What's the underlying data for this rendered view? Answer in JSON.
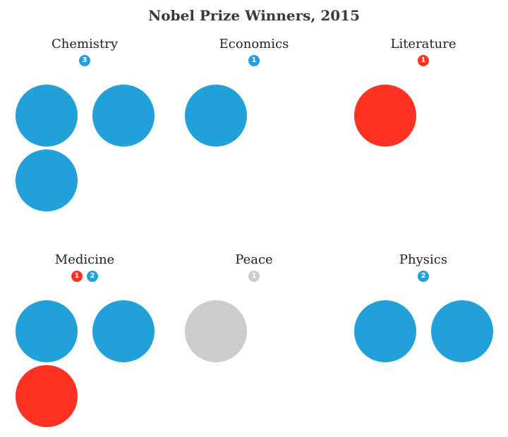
{
  "chart_data": {
    "type": "other",
    "title": "Nobel Prize Winners, 2015",
    "colors": {
      "blue": "#21a0d9",
      "red": "#ff3123",
      "gray": "#cccccc"
    },
    "categories": [
      {
        "name": "Chemistry",
        "badges": [
          {
            "count": "3",
            "color": "blue"
          }
        ],
        "winners": [
          "blue",
          "blue",
          "blue"
        ]
      },
      {
        "name": "Economics",
        "badges": [
          {
            "count": "1",
            "color": "blue"
          }
        ],
        "winners": [
          "blue"
        ]
      },
      {
        "name": "Literature",
        "badges": [
          {
            "count": "1",
            "color": "red"
          }
        ],
        "winners": [
          "red"
        ]
      },
      {
        "name": "Medicine",
        "badges": [
          {
            "count": "1",
            "color": "red"
          },
          {
            "count": "2",
            "color": "blue"
          }
        ],
        "winners": [
          "blue",
          "blue",
          "red"
        ]
      },
      {
        "name": "Peace",
        "badges": [
          {
            "count": "1",
            "color": "gray"
          }
        ],
        "winners": [
          "gray"
        ]
      },
      {
        "name": "Physics",
        "badges": [
          {
            "count": "2",
            "color": "blue"
          }
        ],
        "winners": [
          "blue",
          "blue"
        ]
      }
    ]
  }
}
